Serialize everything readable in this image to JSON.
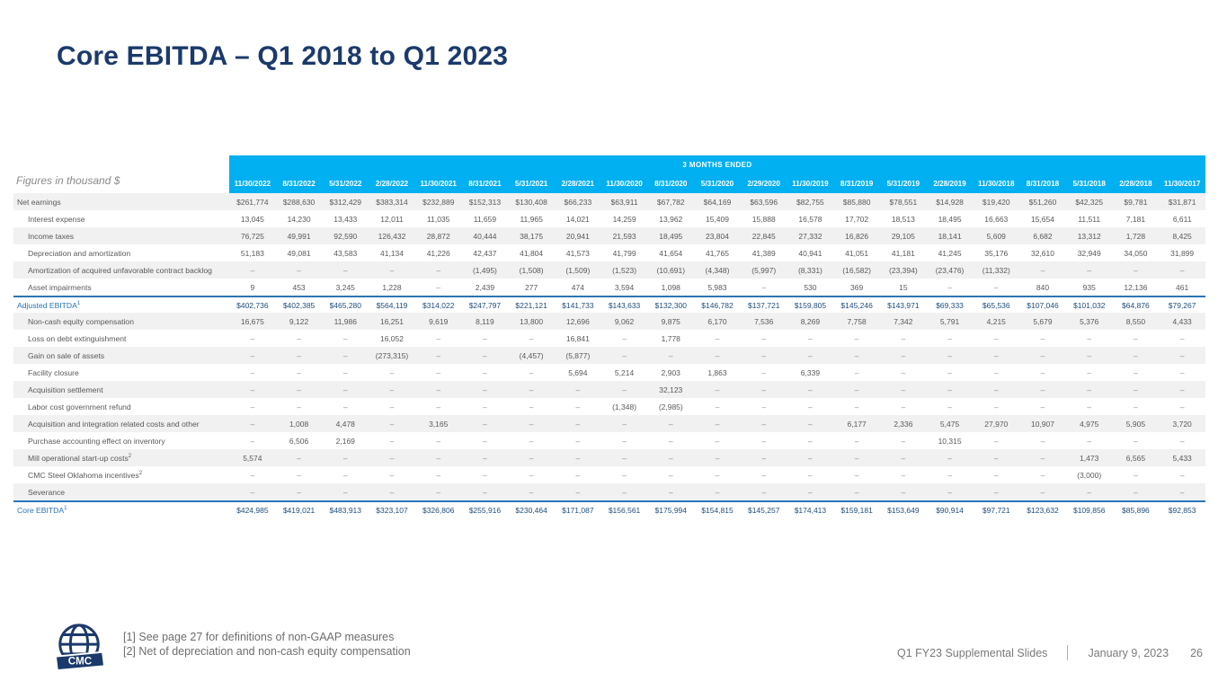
{
  "colors": {
    "header_blue": "#00B0F0",
    "navy": "#1B3A6B",
    "total_blue": "#1F4E79",
    "line_blue": "#2E74B5"
  },
  "slide": {
    "title": "Core EBITDA – Q1 2018 to Q1 2023",
    "footnote1": "[1] See page 27 for definitions of non-GAAP measures",
    "footnote2": "[2] Net of depreciation and non-cash equity compensation",
    "footer": {
      "logo_text": "CMC",
      "deck_name": "Q1 FY23 Supplemental Slides",
      "date": "January 9, 2023",
      "page": "26"
    }
  },
  "table": {
    "figures_note": "Figures in thousand $",
    "banner": "3 MONTHS ENDED",
    "columns": [
      "11/30/2022",
      "8/31/2022",
      "5/31/2022",
      "2/28/2022",
      "11/30/2021",
      "8/31/2021",
      "5/31/2021",
      "2/28/2021",
      "11/30/2020",
      "8/31/2020",
      "5/31/2020",
      "2/29/2020",
      "11/30/2019",
      "8/31/2019",
      "5/31/2019",
      "2/28/2019",
      "11/30/2018",
      "8/31/2018",
      "5/31/2018",
      "2/28/2018",
      "11/30/2017"
    ],
    "rows": [
      {
        "label": "Net earnings",
        "sup": "",
        "indent": false,
        "total": false,
        "shaded": true,
        "values": [
          "$261,774",
          "$288,630",
          "$312,429",
          "$383,314",
          "$232,889",
          "$152,313",
          "$130,408",
          "$66,233",
          "$63,911",
          "$67,782",
          "$64,169",
          "$63,596",
          "$82,755",
          "$85,880",
          "$78,551",
          "$14,928",
          "$19,420",
          "$51,260",
          "$42,325",
          "$9,781",
          "$31,871"
        ]
      },
      {
        "label": "Interest expense",
        "sup": "",
        "indent": true,
        "total": false,
        "shaded": false,
        "values": [
          "13,045",
          "14,230",
          "13,433",
          "12,011",
          "11,035",
          "11,659",
          "11,965",
          "14,021",
          "14,259",
          "13,962",
          "15,409",
          "15,888",
          "16,578",
          "17,702",
          "18,513",
          "18,495",
          "16,663",
          "15,654",
          "11,511",
          "7,181",
          "6,611"
        ]
      },
      {
        "label": "Income taxes",
        "sup": "",
        "indent": true,
        "total": false,
        "shaded": true,
        "values": [
          "76,725",
          "49,991",
          "92,590",
          "126,432",
          "28,872",
          "40,444",
          "38,175",
          "20,941",
          "21,593",
          "18,495",
          "23,804",
          "22,845",
          "27,332",
          "16,826",
          "29,105",
          "18,141",
          "5,609",
          "6,682",
          "13,312",
          "1,728",
          "8,425"
        ]
      },
      {
        "label": "Depreciation and amortization",
        "sup": "",
        "indent": true,
        "total": false,
        "shaded": false,
        "values": [
          "51,183",
          "49,081",
          "43,583",
          "41,134",
          "41,226",
          "42,437",
          "41,804",
          "41,573",
          "41,799",
          "41,654",
          "41,765",
          "41,389",
          "40,941",
          "41,051",
          "41,181",
          "41,245",
          "35,176",
          "32,610",
          "32,949",
          "34,050",
          "31,899"
        ]
      },
      {
        "label": "Amortization of acquired unfavorable contract backlog",
        "sup": "",
        "indent": true,
        "total": false,
        "shaded": true,
        "values": [
          "–",
          "–",
          "–",
          "–",
          "–",
          "(1,495)",
          "(1,508)",
          "(1,509)",
          "(1,523)",
          "(10,691)",
          "(4,348)",
          "(5,997)",
          "(8,331)",
          "(16,582)",
          "(23,394)",
          "(23,476)",
          "(11,332)",
          "–",
          "–",
          "–",
          "–"
        ]
      },
      {
        "label": "Asset impairments",
        "sup": "",
        "indent": true,
        "total": false,
        "shaded": false,
        "values": [
          "9",
          "453",
          "3,245",
          "1,228",
          "–",
          "2,439",
          "277",
          "474",
          "3,594",
          "1,098",
          "5,983",
          "–",
          "530",
          "369",
          "15",
          "–",
          "–",
          "840",
          "935",
          "12,136",
          "461"
        ]
      },
      {
        "label": "Adjusted EBITDA",
        "sup": "1",
        "indent": false,
        "total": true,
        "shaded": false,
        "values": [
          "$402,736",
          "$402,385",
          "$465,280",
          "$564,119",
          "$314,022",
          "$247,797",
          "$221,121",
          "$141,733",
          "$143,633",
          "$132,300",
          "$146,782",
          "$137,721",
          "$159,805",
          "$145,246",
          "$143,971",
          "$69,333",
          "$65,536",
          "$107,046",
          "$101,032",
          "$64,876",
          "$79,267"
        ]
      },
      {
        "label": "Non-cash equity compensation",
        "sup": "",
        "indent": true,
        "total": false,
        "shaded": true,
        "values": [
          "16,675",
          "9,122",
          "11,986",
          "16,251",
          "9,619",
          "8,119",
          "13,800",
          "12,696",
          "9,062",
          "9,875",
          "6,170",
          "7,536",
          "8,269",
          "7,758",
          "7,342",
          "5,791",
          "4,215",
          "5,679",
          "5,376",
          "8,550",
          "4,433"
        ]
      },
      {
        "label": "Loss on debt extinguishment",
        "sup": "",
        "indent": true,
        "total": false,
        "shaded": false,
        "values": [
          "–",
          "–",
          "–",
          "16,052",
          "–",
          "–",
          "–",
          "16,841",
          "–",
          "1,778",
          "–",
          "–",
          "–",
          "–",
          "–",
          "–",
          "–",
          "–",
          "–",
          "–",
          "–"
        ]
      },
      {
        "label": "Gain on sale of assets",
        "sup": "",
        "indent": true,
        "total": false,
        "shaded": true,
        "values": [
          "–",
          "–",
          "–",
          "(273,315)",
          "–",
          "–",
          "(4,457)",
          "(5,877)",
          "–",
          "–",
          "–",
          "–",
          "–",
          "–",
          "–",
          "–",
          "–",
          "–",
          "–",
          "–",
          "–"
        ]
      },
      {
        "label": "Facility closure",
        "sup": "",
        "indent": true,
        "total": false,
        "shaded": false,
        "values": [
          "–",
          "–",
          "–",
          "–",
          "–",
          "–",
          "–",
          "5,694",
          "5,214",
          "2,903",
          "1,863",
          "–",
          "6,339",
          "–",
          "–",
          "–",
          "–",
          "–",
          "–",
          "–",
          "–"
        ]
      },
      {
        "label": "Acquisition settlement",
        "sup": "",
        "indent": true,
        "total": false,
        "shaded": true,
        "values": [
          "–",
          "–",
          "–",
          "–",
          "–",
          "–",
          "–",
          "–",
          "–",
          "32,123",
          "–",
          "–",
          "–",
          "–",
          "–",
          "–",
          "–",
          "–",
          "–",
          "–",
          "–"
        ]
      },
      {
        "label": "Labor cost government refund",
        "sup": "",
        "indent": true,
        "total": false,
        "shaded": false,
        "values": [
          "–",
          "–",
          "–",
          "–",
          "–",
          "–",
          "–",
          "–",
          "(1,348)",
          "(2,985)",
          "–",
          "–",
          "–",
          "–",
          "–",
          "–",
          "–",
          "–",
          "–",
          "–",
          "–"
        ]
      },
      {
        "label": "Acquisition and integration related costs and other",
        "sup": "",
        "indent": true,
        "total": false,
        "shaded": true,
        "values": [
          "–",
          "1,008",
          "4,478",
          "–",
          "3,165",
          "–",
          "–",
          "–",
          "–",
          "–",
          "–",
          "–",
          "–",
          "6,177",
          "2,336",
          "5,475",
          "27,970",
          "10,907",
          "4,975",
          "5,905",
          "3,720"
        ]
      },
      {
        "label": "Purchase accounting effect on inventory",
        "sup": "",
        "indent": true,
        "total": false,
        "shaded": false,
        "values": [
          "–",
          "6,506",
          "2,169",
          "–",
          "–",
          "–",
          "–",
          "–",
          "–",
          "–",
          "–",
          "–",
          "–",
          "–",
          "–",
          "10,315",
          "–",
          "–",
          "–",
          "–",
          "–"
        ]
      },
      {
        "label": "Mill operational start-up costs",
        "sup": "2",
        "indent": true,
        "total": false,
        "shaded": true,
        "values": [
          "5,574",
          "–",
          "–",
          "–",
          "–",
          "–",
          "–",
          "–",
          "–",
          "–",
          "–",
          "–",
          "–",
          "–",
          "–",
          "–",
          "–",
          "–",
          "1,473",
          "6,565",
          "5,433"
        ]
      },
      {
        "label": "CMC Steel Oklahoma incentives",
        "sup": "2",
        "indent": true,
        "total": false,
        "shaded": false,
        "values": [
          "–",
          "–",
          "–",
          "–",
          "–",
          "–",
          "–",
          "–",
          "–",
          "–",
          "–",
          "–",
          "–",
          "–",
          "–",
          "–",
          "–",
          "–",
          "(3,000)",
          "–",
          "–"
        ]
      },
      {
        "label": "Severance",
        "sup": "",
        "indent": true,
        "total": false,
        "shaded": true,
        "values": [
          "–",
          "–",
          "–",
          "–",
          "–",
          "–",
          "–",
          "–",
          "–",
          "–",
          "–",
          "–",
          "–",
          "–",
          "–",
          "–",
          "–",
          "–",
          "–",
          "–",
          "–"
        ]
      },
      {
        "label": "Core EBITDA",
        "sup": "1",
        "indent": false,
        "total": true,
        "shaded": false,
        "values": [
          "$424,985",
          "$419,021",
          "$483,913",
          "$323,107",
          "$326,806",
          "$255,916",
          "$230,464",
          "$171,087",
          "$156,561",
          "$175,994",
          "$154,815",
          "$145,257",
          "$174,413",
          "$159,181",
          "$153,649",
          "$90,914",
          "$97,721",
          "$123,632",
          "$109,856",
          "$85,896",
          "$92,853"
        ]
      }
    ]
  }
}
